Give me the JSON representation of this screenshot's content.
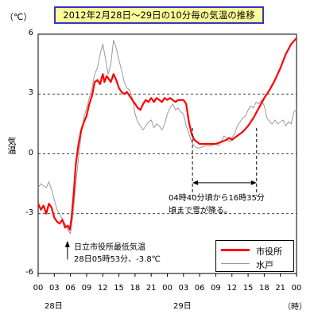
{
  "chart_data": {
    "type": "line",
    "title": "2012年2月28日～29日の10分毎の気温の推移",
    "y_unit": "（℃）",
    "ylabel": "気温",
    "xlabel_unit": "（時）",
    "ylim": [
      -6,
      6
    ],
    "y_ticks": [
      "6",
      "3",
      "0",
      "-3",
      "-6"
    ],
    "xlim": [
      0,
      48
    ],
    "x_ticks": [
      "00",
      "03",
      "06",
      "09",
      "12",
      "15",
      "18",
      "21",
      "00",
      "03",
      "06",
      "09",
      "12",
      "15",
      "18",
      "21",
      "00"
    ],
    "day_labels": [
      "28日",
      "29日"
    ],
    "grid": "dashed horizontal lines at 3, 0, -3",
    "legend_position": "bottom-right",
    "series": [
      {
        "name": "市役所",
        "color": "#ff0000",
        "points": [
          [
            0,
            -2.5
          ],
          [
            0.5,
            -2.8
          ],
          [
            1,
            -2.6
          ],
          [
            1.5,
            -3.0
          ],
          [
            2,
            -2.5
          ],
          [
            2.5,
            -2.7
          ],
          [
            3,
            -3.2
          ],
          [
            3.5,
            -3.4
          ],
          [
            4,
            -3.5
          ],
          [
            4.5,
            -3.3
          ],
          [
            5,
            -3.7
          ],
          [
            5.5,
            -3.6
          ],
          [
            5.9,
            -3.8
          ],
          [
            6.2,
            -3.2
          ],
          [
            6.6,
            -2.0
          ],
          [
            7,
            -0.5
          ],
          [
            7.5,
            0.5
          ],
          [
            8,
            1.2
          ],
          [
            8.5,
            1.6
          ],
          [
            9,
            1.9
          ],
          [
            9.5,
            2.5
          ],
          [
            10,
            2.9
          ],
          [
            10.5,
            3.6
          ],
          [
            11,
            3.7
          ],
          [
            11.5,
            3.5
          ],
          [
            12,
            4.0
          ],
          [
            12.3,
            3.6
          ],
          [
            12.7,
            3.9
          ],
          [
            13,
            3.8
          ],
          [
            13.5,
            3.6
          ],
          [
            14,
            4.0
          ],
          [
            14.5,
            3.7
          ],
          [
            15,
            3.3
          ],
          [
            15.5,
            3.1
          ],
          [
            16,
            3.0
          ],
          [
            16.5,
            3.1
          ],
          [
            17,
            2.9
          ],
          [
            17.5,
            2.7
          ],
          [
            18,
            2.5
          ],
          [
            18.5,
            2.3
          ],
          [
            19,
            2.2
          ],
          [
            19.5,
            2.5
          ],
          [
            20,
            2.7
          ],
          [
            20.5,
            2.6
          ],
          [
            21,
            2.8
          ],
          [
            21.5,
            2.6
          ],
          [
            22,
            2.8
          ],
          [
            22.5,
            2.7
          ],
          [
            23,
            2.6
          ],
          [
            23.5,
            2.8
          ],
          [
            24,
            2.7
          ],
          [
            24.5,
            2.8
          ],
          [
            25,
            2.7
          ],
          [
            25.5,
            2.6
          ],
          [
            26,
            2.7
          ],
          [
            26.5,
            2.7
          ],
          [
            27,
            2.7
          ],
          [
            27.5,
            2.5
          ],
          [
            28,
            1.6
          ],
          [
            28.5,
            1.0
          ],
          [
            29,
            0.7
          ],
          [
            29.5,
            0.6
          ],
          [
            30,
            0.5
          ],
          [
            31,
            0.5
          ],
          [
            32,
            0.5
          ],
          [
            33,
            0.5
          ],
          [
            34,
            0.6
          ],
          [
            35,
            0.7
          ],
          [
            35.5,
            0.8
          ],
          [
            36,
            0.7
          ],
          [
            36.5,
            0.8
          ],
          [
            37,
            0.9
          ],
          [
            38,
            1.1
          ],
          [
            39,
            1.4
          ],
          [
            40,
            1.8
          ],
          [
            41,
            2.3
          ],
          [
            42,
            2.8
          ],
          [
            43,
            3.2
          ],
          [
            44,
            3.7
          ],
          [
            45,
            4.3
          ],
          [
            46,
            5.0
          ],
          [
            47,
            5.5
          ],
          [
            48,
            5.8
          ]
        ]
      },
      {
        "name": "水戸",
        "color": "#999999",
        "points": [
          [
            0,
            -1.7
          ],
          [
            0.5,
            -1.5
          ],
          [
            1,
            -1.6
          ],
          [
            1.5,
            -1.7
          ],
          [
            2,
            -1.4
          ],
          [
            2.5,
            -1.8
          ],
          [
            3,
            -2.3
          ],
          [
            3.5,
            -2.8
          ],
          [
            4,
            -3.0
          ],
          [
            4.5,
            -3.3
          ],
          [
            5,
            -3.5
          ],
          [
            5.5,
            -3.8
          ],
          [
            6,
            -4.0
          ],
          [
            6.5,
            -3.0
          ],
          [
            7,
            -1.5
          ],
          [
            7.5,
            -0.2
          ],
          [
            8,
            1.0
          ],
          [
            8.5,
            1.8
          ],
          [
            9,
            2.3
          ],
          [
            9.5,
            2.8
          ],
          [
            10,
            3.3
          ],
          [
            10.5,
            4.0
          ],
          [
            11,
            4.3
          ],
          [
            11.5,
            5.0
          ],
          [
            12,
            5.5
          ],
          [
            12.5,
            4.8
          ],
          [
            13,
            4.0
          ],
          [
            13.5,
            4.5
          ],
          [
            14,
            5.7
          ],
          [
            14.5,
            5.3
          ],
          [
            15,
            4.7
          ],
          [
            15.5,
            4.2
          ],
          [
            16,
            3.6
          ],
          [
            16.5,
            3.3
          ],
          [
            17,
            3.2
          ],
          [
            17.5,
            2.8
          ],
          [
            18,
            2.0
          ],
          [
            18.5,
            1.6
          ],
          [
            19,
            1.4
          ],
          [
            19.5,
            1.2
          ],
          [
            20,
            1.4
          ],
          [
            20.5,
            1.6
          ],
          [
            21,
            1.7
          ],
          [
            21.5,
            1.3
          ],
          [
            22,
            1.5
          ],
          [
            22.5,
            1.4
          ],
          [
            23,
            1.2
          ],
          [
            23.5,
            1.5
          ],
          [
            24,
            2.0
          ],
          [
            24.5,
            2.3
          ],
          [
            25,
            2.5
          ],
          [
            25.5,
            2.2
          ],
          [
            26,
            2.3
          ],
          [
            26.5,
            2.1
          ],
          [
            27,
            2.0
          ],
          [
            27.5,
            1.4
          ],
          [
            28,
            1.0
          ],
          [
            28.5,
            0.6
          ],
          [
            29,
            0.4
          ],
          [
            29.5,
            0.3
          ],
          [
            30,
            0.3
          ],
          [
            31,
            0.4
          ],
          [
            32,
            0.4
          ],
          [
            33,
            0.5
          ],
          [
            33.5,
            0.4
          ],
          [
            34,
            0.6
          ],
          [
            34.5,
            0.9
          ],
          [
            35,
            0.8
          ],
          [
            35.5,
            0.6
          ],
          [
            36,
            0.8
          ],
          [
            36.5,
            1.0
          ],
          [
            37,
            1.4
          ],
          [
            37.5,
            1.6
          ],
          [
            38,
            1.8
          ],
          [
            38.5,
            1.9
          ],
          [
            39,
            2.2
          ],
          [
            39.5,
            2.4
          ],
          [
            40,
            2.3
          ],
          [
            40.5,
            2.6
          ],
          [
            41,
            2.5
          ],
          [
            41.5,
            2.7
          ],
          [
            42,
            2.4
          ],
          [
            42.5,
            1.8
          ],
          [
            43,
            1.6
          ],
          [
            43.5,
            1.5
          ],
          [
            44,
            1.7
          ],
          [
            44.5,
            1.5
          ],
          [
            45,
            1.6
          ],
          [
            45.5,
            1.7
          ],
          [
            46,
            1.4
          ],
          [
            46.5,
            1.6
          ],
          [
            47,
            1.5
          ],
          [
            47.5,
            2.1
          ],
          [
            48,
            2.2
          ]
        ]
      }
    ],
    "annotations": [
      {
        "id": "rain",
        "lines": [
          "04時40分頃から16時35分",
          "頃まで雪が降る。"
        ],
        "x_range": [
          28.67,
          40.58
        ]
      },
      {
        "id": "min",
        "lines": [
          "日立市役所最低気温",
          "28日05時53分、-3.8℃"
        ],
        "x": 5.88,
        "y": -3.8
      }
    ]
  }
}
